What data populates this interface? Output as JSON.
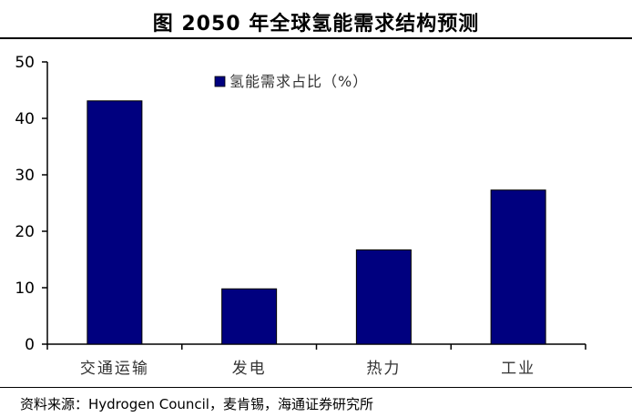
{
  "header": {
    "title": "图 2050 年全球氢能需求结构预测"
  },
  "footer": {
    "source": "资料来源：Hydrogen Council，麦肯锡，海通证券研究所"
  },
  "colors": {
    "bar": "#00007f",
    "axis": "#000000"
  },
  "chart_data": {
    "type": "bar",
    "categories": [
      "交通运输",
      "发电",
      "热力",
      "工业"
    ],
    "series": [
      {
        "name": "氢能需求占比（%）",
        "values": [
          43.1,
          9.8,
          16.7,
          27.3
        ]
      }
    ],
    "yticks": [
      0,
      10,
      20,
      30,
      40,
      50
    ],
    "ylim": [
      0,
      50
    ],
    "grid": false,
    "legend_position": "top-center"
  }
}
